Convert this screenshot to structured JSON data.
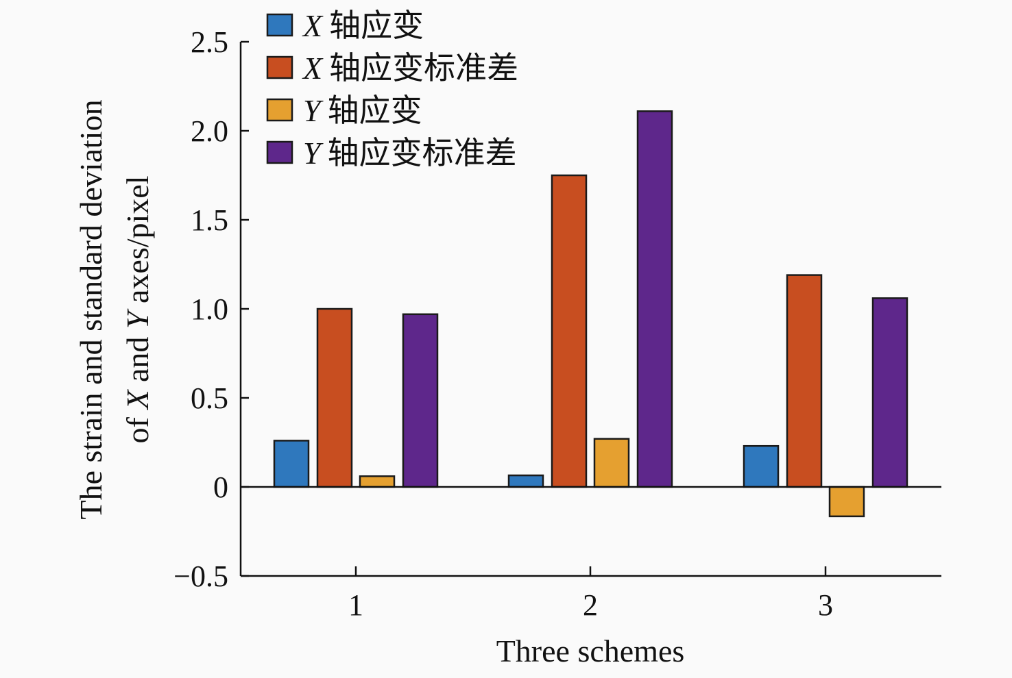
{
  "chart_data": {
    "type": "bar",
    "title": "",
    "xlabel": "Three schemes",
    "ylabel_lines": [
      [
        "The strain and standard deviation"
      ],
      [
        "of ",
        "X",
        " and ",
        "Y",
        " axes/pixel"
      ]
    ],
    "categories": [
      "1",
      "2",
      "3"
    ],
    "ylim": [
      -0.5,
      2.5
    ],
    "yticks": [
      -0.5,
      0,
      0.5,
      1.0,
      1.5,
      2.0,
      2.5
    ],
    "ytick_labels": [
      "−0.5",
      "0",
      "0.5",
      "1.0",
      "1.5",
      "2.0",
      "2.5"
    ],
    "grid": false,
    "legend_position": "top-left",
    "series": [
      {
        "name": "X 轴应变",
        "name_italic": "X",
        "name_rest": "轴应变",
        "color": "#2f78bd",
        "values": [
          0.26,
          0.065,
          0.23
        ]
      },
      {
        "name": "X 轴应变标准差",
        "name_italic": "X",
        "name_rest": "轴应变标准差",
        "color": "#c84e20",
        "values": [
          1.0,
          1.75,
          1.19
        ]
      },
      {
        "name": "Y 轴应变",
        "name_italic": "Y",
        "name_rest": "轴应变",
        "color": "#e5a030",
        "values": [
          0.06,
          0.27,
          -0.165
        ]
      },
      {
        "name": "Y 轴应变标准差",
        "name_italic": "Y",
        "name_rest": "轴应变标准差",
        "color": "#5e278b",
        "values": [
          0.97,
          2.11,
          1.06
        ]
      }
    ]
  }
}
